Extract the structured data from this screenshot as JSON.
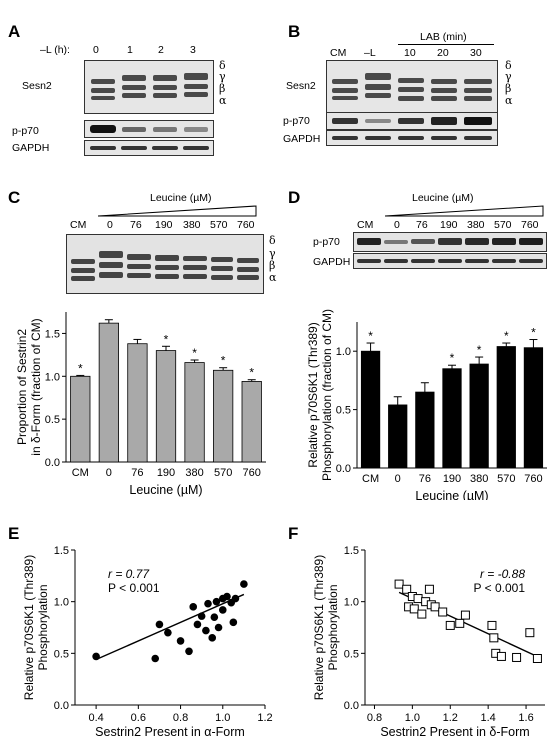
{
  "panels": {
    "A": {
      "letter": "A",
      "timepoint_label": "–L (h):",
      "timepoints": [
        "0",
        "1",
        "2",
        "3"
      ],
      "blots": [
        "Sesn2",
        "p-p70",
        "GAPDH"
      ],
      "isoforms": [
        "δ",
        "γ",
        "β",
        "α"
      ]
    },
    "B": {
      "letter": "B",
      "group_label": "LAB (min)",
      "lanes": [
        "CM",
        "–L",
        "10",
        "20",
        "30"
      ],
      "blots": [
        "Sesn2",
        "p-p70",
        "GAPDH"
      ],
      "isoforms": [
        "δ",
        "γ",
        "β",
        "α"
      ]
    },
    "C": {
      "letter": "C",
      "group_label": "Leucine (µM)",
      "lanes": [
        "CM",
        "0",
        "76",
        "190",
        "380",
        "570",
        "760"
      ],
      "isoforms": [
        "δ",
        "γ",
        "β",
        "α"
      ]
    },
    "D": {
      "letter": "D",
      "group_label": "Leucine (µM)",
      "lanes": [
        "CM",
        "0",
        "76",
        "190",
        "380",
        "570",
        "760"
      ],
      "blots": [
        "p-p70",
        "GAPDH"
      ]
    },
    "E": {
      "letter": "E",
      "stat_r": "r = 0.77",
      "stat_p": "P < 0.001"
    },
    "F": {
      "letter": "F",
      "stat_r": "r = -0.88",
      "stat_p": "P < 0.001"
    }
  },
  "chart_data": [
    {
      "id": "C",
      "type": "bar",
      "categories": [
        "CM",
        "0",
        "76",
        "190",
        "380",
        "570",
        "760"
      ],
      "values": [
        1.0,
        1.62,
        1.38,
        1.3,
        1.16,
        1.07,
        0.94
      ],
      "errors": [
        0.01,
        0.04,
        0.05,
        0.05,
        0.03,
        0.03,
        0.02
      ],
      "significant": [
        true,
        false,
        false,
        true,
        true,
        true,
        true
      ],
      "ylabel_lines": [
        "Proportion of Sestrin2",
        "in δ-Form (fraction of CM)"
      ],
      "xlabel": "Leucine (µM)",
      "ylim": [
        0,
        1.75
      ],
      "yticks": [
        "0.0",
        "0.5",
        "1.0",
        "1.5"
      ],
      "bar_color": "#a9a9a9"
    },
    {
      "id": "D",
      "type": "bar",
      "categories": [
        "CM",
        "0",
        "76",
        "190",
        "380",
        "570",
        "760"
      ],
      "values": [
        1.0,
        0.54,
        0.65,
        0.85,
        0.89,
        1.04,
        1.03
      ],
      "errors": [
        0.07,
        0.07,
        0.08,
        0.03,
        0.06,
        0.03,
        0.07
      ],
      "significant": [
        true,
        false,
        false,
        true,
        true,
        true,
        true
      ],
      "ylabel_lines": [
        "Relative p70S6K1 (Thr389)",
        "Phosphorylation (fraction of CM)"
      ],
      "xlabel": "Leucine (µM)",
      "ylim": [
        0,
        1.25
      ],
      "yticks": [
        "0.0",
        "0.5",
        "1.0"
      ],
      "bar_color": "#000000"
    },
    {
      "id": "E",
      "type": "scatter",
      "marker": "filled-circle",
      "x": [
        0.4,
        0.68,
        0.7,
        0.74,
        0.8,
        0.84,
        0.86,
        0.88,
        0.9,
        0.92,
        0.93,
        0.95,
        0.96,
        0.97,
        0.98,
        1.0,
        1.0,
        1.02,
        1.04,
        1.05,
        1.06,
        1.1
      ],
      "y": [
        0.47,
        0.45,
        0.78,
        0.7,
        0.62,
        0.52,
        0.95,
        0.78,
        0.86,
        0.72,
        0.98,
        0.65,
        0.85,
        1.0,
        0.75,
        1.03,
        0.92,
        1.05,
        0.99,
        0.8,
        1.03,
        1.17
      ],
      "fit": [
        [
          0.4,
          0.44
        ],
        [
          1.1,
          1.07
        ]
      ],
      "xlabel": "Sestrin2 Present in α-Form",
      "ylabel_lines": [
        "Relative p70S6K1 (Thr389)",
        "Phosphorylation"
      ],
      "xlim": [
        0.3,
        1.2
      ],
      "ylim": [
        0,
        1.5
      ],
      "xticks": [
        "0.4",
        "0.6",
        "0.8",
        "1.0",
        "1.2"
      ],
      "yticks": [
        "0.0",
        "0.5",
        "1.0",
        "1.5"
      ]
    },
    {
      "id": "F",
      "type": "scatter",
      "marker": "open-square",
      "x": [
        0.93,
        0.97,
        0.98,
        1.0,
        1.01,
        1.03,
        1.05,
        1.07,
        1.09,
        1.1,
        1.12,
        1.16,
        1.2,
        1.25,
        1.28,
        1.42,
        1.43,
        1.44,
        1.47,
        1.55,
        1.62,
        1.66
      ],
      "y": [
        1.17,
        1.12,
        0.95,
        1.05,
        0.93,
        1.03,
        0.88,
        1.0,
        1.12,
        0.97,
        0.95,
        0.9,
        0.77,
        0.79,
        0.87,
        0.77,
        0.65,
        0.5,
        0.47,
        0.46,
        0.7,
        0.45
      ],
      "fit": [
        [
          0.93,
          1.09
        ],
        [
          1.67,
          0.46
        ]
      ],
      "xlabel": "Sestrin2 Present in δ-Form",
      "ylabel_lines": [
        "Relative p70S6K1 (Thr389)",
        "Phosphorylation"
      ],
      "xlim": [
        0.75,
        1.7
      ],
      "ylim": [
        0,
        1.5
      ],
      "xticks": [
        "0.8",
        "1.0",
        "1.2",
        "1.4",
        "1.6"
      ],
      "yticks": [
        "0.0",
        "0.5",
        "1.0",
        "1.5"
      ]
    }
  ]
}
